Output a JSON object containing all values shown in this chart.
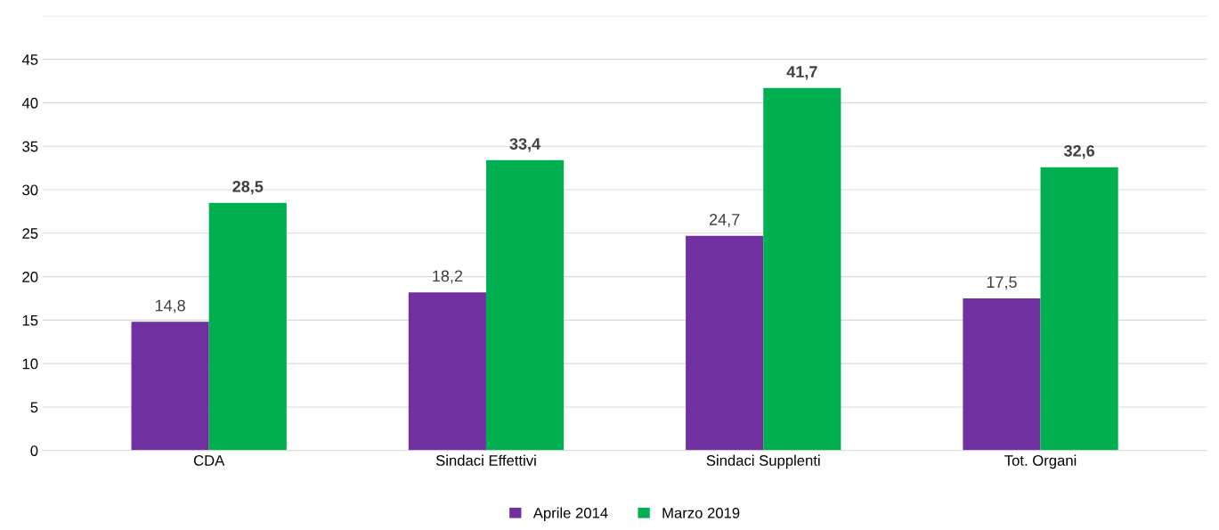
{
  "chart_data": {
    "type": "bar",
    "categories": [
      "CDA",
      "Sindaci Effettivi",
      "Sindaci Supplenti",
      "Tot. Organi"
    ],
    "series": [
      {
        "name": "Aprile 2014",
        "color": "#7030a0",
        "values": [
          14.8,
          18.2,
          24.7,
          17.5
        ],
        "value_labels": [
          "14,8",
          "18,2",
          "24,7",
          "17,5"
        ]
      },
      {
        "name": "Marzo 2019",
        "color": "#00b050",
        "values": [
          28.5,
          33.4,
          41.7,
          32.6
        ],
        "value_labels": [
          "28,5",
          "33,4",
          "41,7",
          "32,6"
        ]
      }
    ],
    "ylim": [
      0,
      50
    ],
    "yticks": [
      0,
      5,
      10,
      15,
      20,
      25,
      30,
      35,
      40,
      45,
      {
        "value": 50,
        "label": null
      }
    ],
    "grid": "y",
    "legend": "bottom"
  }
}
